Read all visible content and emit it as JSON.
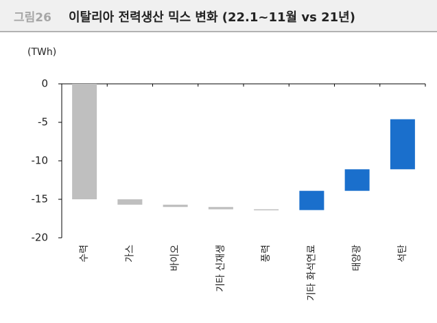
{
  "figure_label": "그림26",
  "chart_data": {
    "type": "waterfall",
    "title": "이탈리아 전력생산 믹스 변화 (22.1~11월 vs 21년)",
    "unit": "(TWh)",
    "categories": [
      "수력",
      "가스",
      "바이오",
      "기타 신재생",
      "풍력",
      "기타 화석연료",
      "태양광",
      "석탄"
    ],
    "values": [
      -15.0,
      -0.7,
      -0.3,
      -0.3,
      -0.1,
      2.5,
      2.8,
      6.5
    ],
    "colors": {
      "decrease": "#bfbfbf",
      "increase": "#1a6fcc"
    },
    "ylim": [
      -20,
      0
    ],
    "yticks": [
      0,
      -5,
      -10,
      -15,
      -20
    ]
  }
}
